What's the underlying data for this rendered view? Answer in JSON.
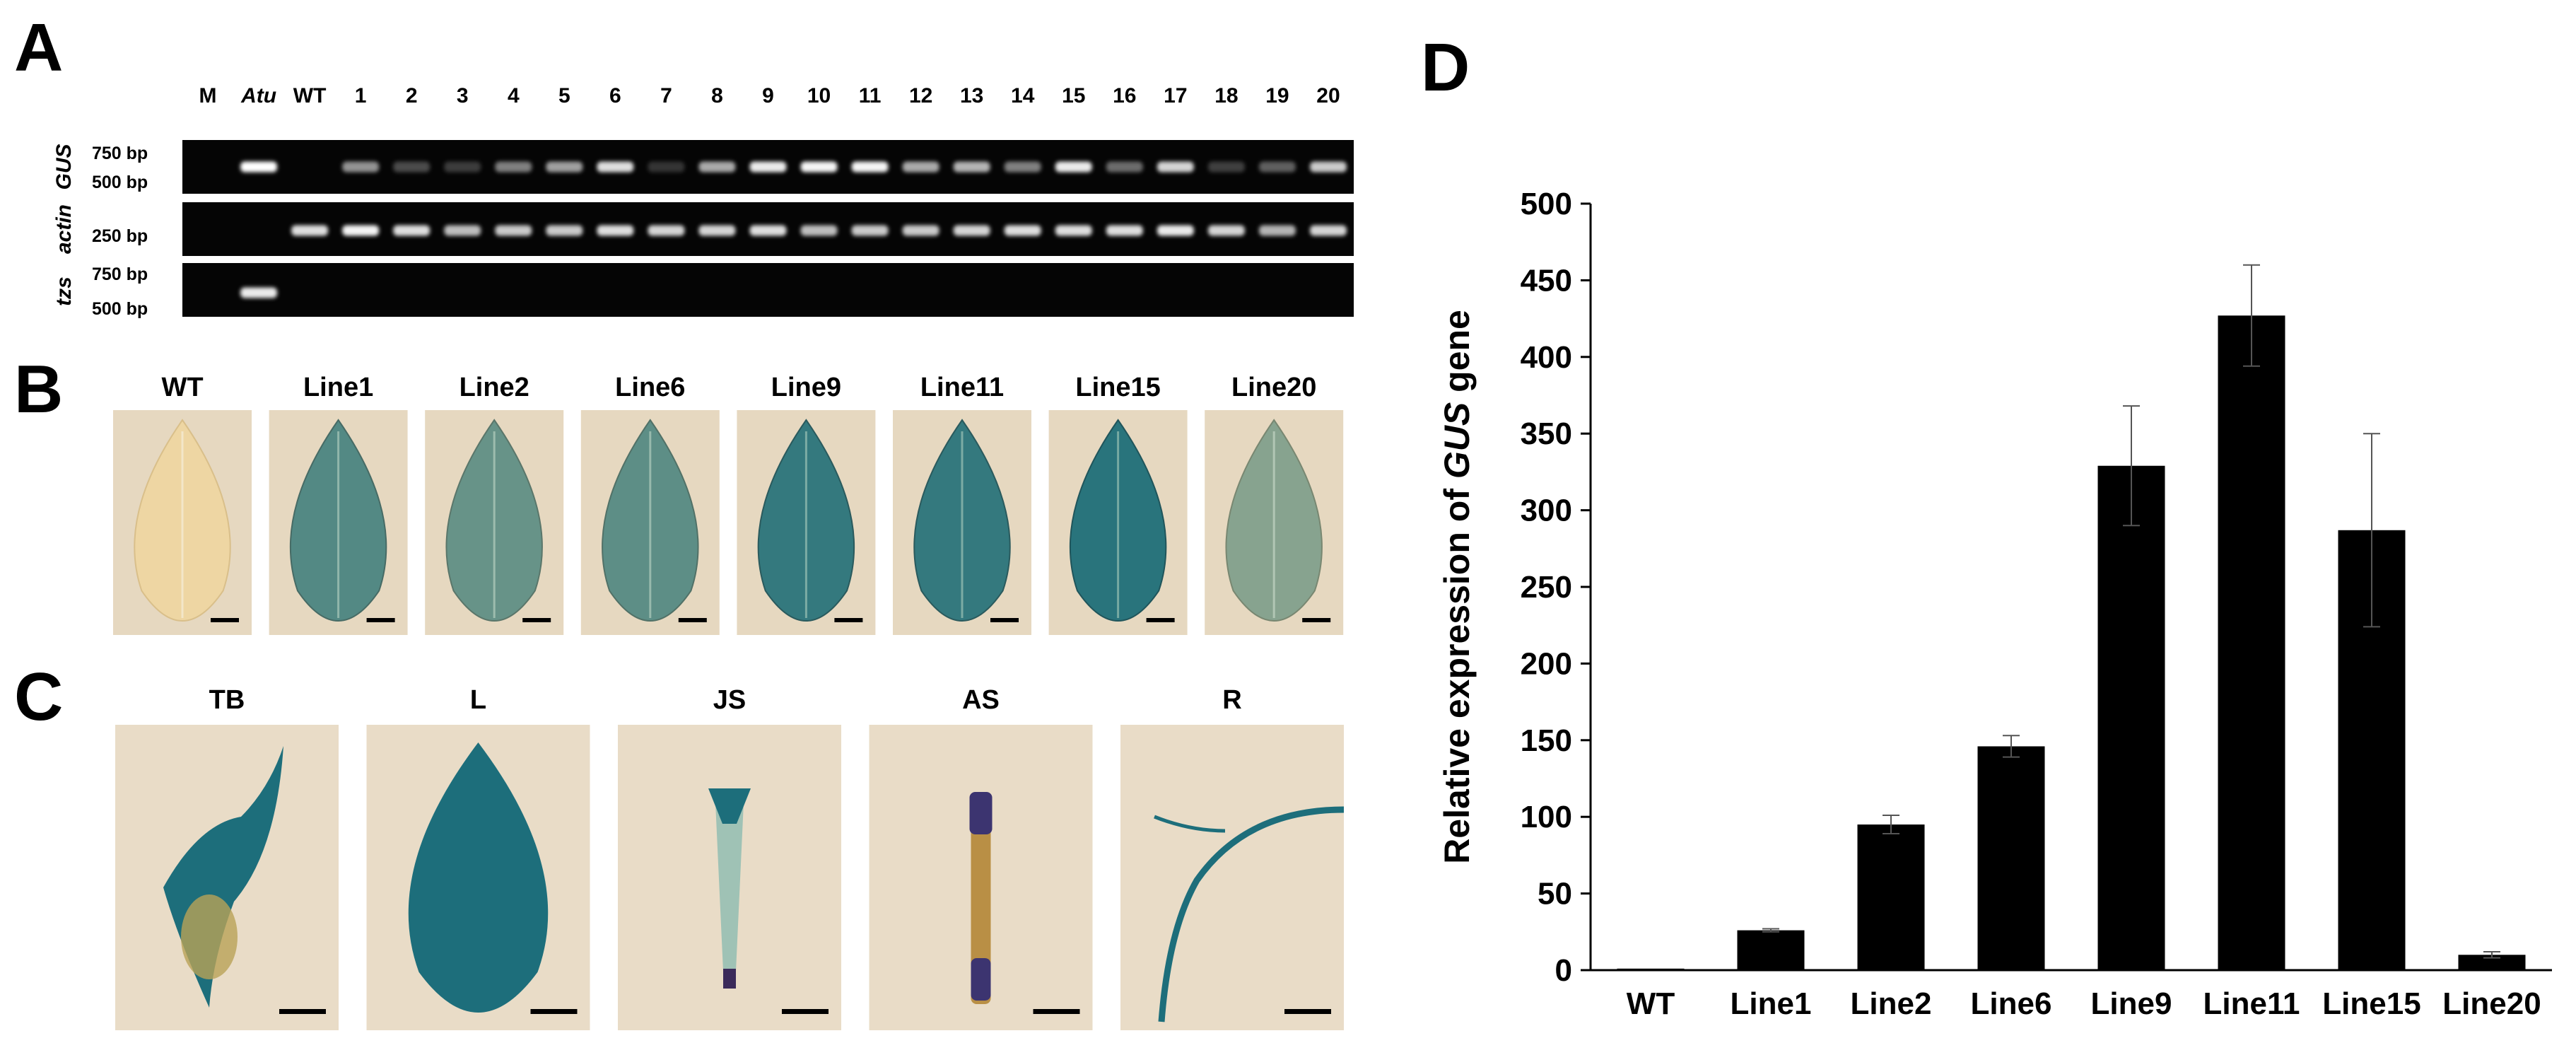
{
  "panels": {
    "a": "A",
    "b": "B",
    "c": "C",
    "d": "D"
  },
  "gel": {
    "lanes": [
      "M",
      "Atu",
      "WT",
      "1",
      "2",
      "3",
      "4",
      "5",
      "6",
      "7",
      "8",
      "9",
      "10",
      "11",
      "12",
      "13",
      "14",
      "15",
      "16",
      "17",
      "18",
      "19",
      "20"
    ],
    "rows": [
      {
        "gene": "GUS",
        "size_labels": [
          "750 bp",
          "500 bp"
        ],
        "band_intensity": [
          0,
          1,
          0,
          0.5,
          0.15,
          0.08,
          0.4,
          0.55,
          0.85,
          0.05,
          0.6,
          0.9,
          0.95,
          0.95,
          0.6,
          0.65,
          0.4,
          0.9,
          0.3,
          0.8,
          0.1,
          0.25,
          0.75
        ]
      },
      {
        "gene": "actin",
        "size_labels": [
          "250 bp"
        ],
        "band_intensity": [
          0,
          0,
          0.85,
          0.95,
          0.85,
          0.7,
          0.75,
          0.75,
          0.85,
          0.8,
          0.8,
          0.85,
          0.7,
          0.75,
          0.75,
          0.8,
          0.85,
          0.85,
          0.85,
          0.9,
          0.8,
          0.65,
          0.8
        ]
      },
      {
        "gene": "tzs",
        "size_labels": [
          "750 bp",
          "500 bp"
        ],
        "band_intensity": [
          0,
          0.9,
          0,
          0,
          0,
          0,
          0,
          0,
          0,
          0,
          0,
          0,
          0,
          0,
          0,
          0,
          0,
          0,
          0,
          0,
          0,
          0,
          0
        ]
      }
    ]
  },
  "leaf_images": [
    {
      "label": "WT",
      "stain": 0
    },
    {
      "label": "Line1",
      "stain": 0.75
    },
    {
      "label": "Line2",
      "stain": 0.65
    },
    {
      "label": "Line6",
      "stain": 0.7
    },
    {
      "label": "Line9",
      "stain": 0.9
    },
    {
      "label": "Line11",
      "stain": 0.9
    },
    {
      "label": "Line15",
      "stain": 0.95
    },
    {
      "label": "Line20",
      "stain": 0.5
    }
  ],
  "tissue_images": [
    {
      "label": "TB"
    },
    {
      "label": "L"
    },
    {
      "label": "JS"
    },
    {
      "label": "AS"
    },
    {
      "label": "R"
    }
  ],
  "chart_data": {
    "type": "bar",
    "categories": [
      "WT",
      "Line1",
      "Line2",
      "Line6",
      "Line9",
      "Line11",
      "Line15",
      "Line20"
    ],
    "values": [
      1,
      26,
      95,
      146,
      329,
      427,
      287,
      10
    ],
    "errors": [
      0,
      1,
      6,
      7,
      39,
      33,
      63,
      2
    ],
    "ylabel_prefix": "Relative expression of ",
    "ylabel_gene": "GUS",
    "ylabel_suffix": " gene",
    "ylim": [
      0,
      500
    ],
    "yticks": [
      0,
      50,
      100,
      150,
      200,
      250,
      300,
      350,
      400,
      450,
      500
    ],
    "grid": false,
    "colors": {
      "bar": "#000000",
      "gel_bg": "#050505",
      "band": "#ffffff"
    }
  }
}
